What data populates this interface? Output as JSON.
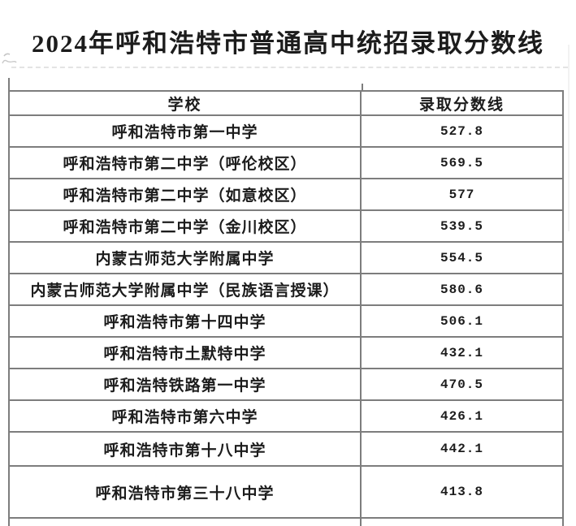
{
  "page": {
    "title": "2024年呼和浩特市普通高中统招录取分数线"
  },
  "table": {
    "headers": {
      "school": "学校",
      "score": "录取分数线"
    },
    "rows": [
      {
        "school": "呼和浩特市第一中学",
        "score": "527.8"
      },
      {
        "school": "呼和浩特市第二中学（呼伦校区）",
        "score": "569.5"
      },
      {
        "school": "呼和浩特市第二中学（如意校区）",
        "score": "577"
      },
      {
        "school": "呼和浩特市第二中学（金川校区）",
        "score": "539.5"
      },
      {
        "school": "内蒙古师范大学附属中学",
        "score": "554.5"
      },
      {
        "school": "内蒙古师范大学附属中学（民族语言授课）",
        "score": "580.6"
      },
      {
        "school": "呼和浩特市第十四中学",
        "score": "506.1"
      },
      {
        "school": "呼和浩特市土默特中学",
        "score": "432.1"
      },
      {
        "school": "呼和浩特铁路第一中学",
        "score": "470.5"
      },
      {
        "school": "呼和浩特市第六中学",
        "score": "426.1"
      },
      {
        "school": "呼和浩特市第十八中学",
        "score": "442.1"
      },
      {
        "school": "呼和浩特市第三十八中学",
        "score": "413.8"
      }
    ]
  },
  "colors": {
    "table_border": "#7d7d7d",
    "text": "#1c1c1c",
    "artifact_dash": "#e4e4e4",
    "artifact_squiggle": "#c4c4c4",
    "background": "#ffffff"
  }
}
